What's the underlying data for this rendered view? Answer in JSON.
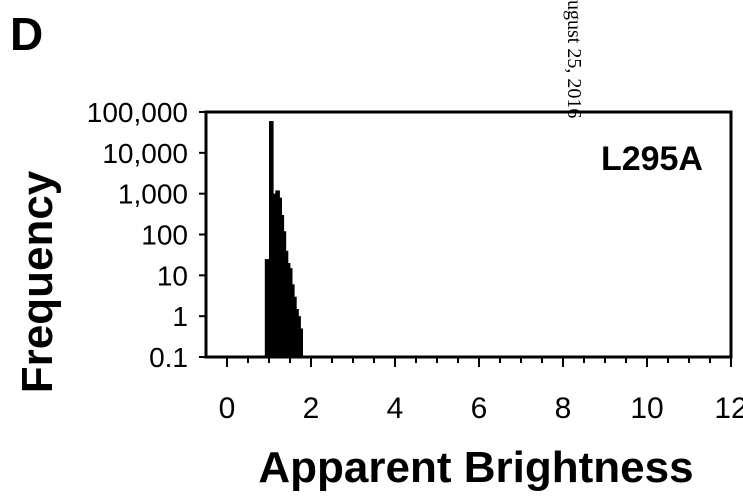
{
  "panel_label": "D",
  "watermark": "ugust 25, 2016",
  "chart_data": {
    "type": "bar",
    "annotation": "L295A",
    "xlabel": "Apparent Brightness",
    "ylabel": "Frequency",
    "x_ticks": [
      "0",
      "2",
      "4",
      "6",
      "8",
      "10",
      "12"
    ],
    "y_ticks": [
      "100,000",
      "10,000",
      "1,000",
      "100",
      "10",
      "1",
      "0.1"
    ],
    "xlim": [
      -0.5,
      12
    ],
    "ylim": [
      0.1,
      100000
    ],
    "y_scale": "log",
    "grid": false,
    "bins": [
      {
        "x": 0.9,
        "y": 25
      },
      {
        "x": 0.95,
        "y": 25
      },
      {
        "x": 1.0,
        "y": 60000
      },
      {
        "x": 1.05,
        "y": 60000
      },
      {
        "x": 1.1,
        "y": 1000
      },
      {
        "x": 1.15,
        "y": 1200
      },
      {
        "x": 1.2,
        "y": 1200
      },
      {
        "x": 1.25,
        "y": 800
      },
      {
        "x": 1.3,
        "y": 300
      },
      {
        "x": 1.35,
        "y": 120
      },
      {
        "x": 1.4,
        "y": 40
      },
      {
        "x": 1.45,
        "y": 20
      },
      {
        "x": 1.5,
        "y": 15
      },
      {
        "x": 1.55,
        "y": 6
      },
      {
        "x": 1.6,
        "y": 3
      },
      {
        "x": 1.65,
        "y": 1.5
      },
      {
        "x": 1.7,
        "y": 1
      },
      {
        "x": 1.75,
        "y": 0.5
      }
    ]
  }
}
